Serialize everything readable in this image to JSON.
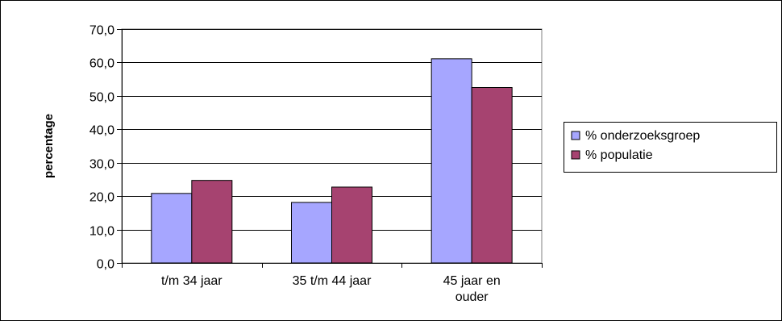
{
  "chart_data": {
    "type": "bar",
    "title": "",
    "ylabel": "percentage",
    "xlabel": "",
    "categories": [
      [
        "t/m 34 jaar"
      ],
      [
        "35 t/m 44 jaar"
      ],
      [
        "45 jaar en",
        "ouder"
      ]
    ],
    "series": [
      {
        "name": "% onderzoeksgroep",
        "values": [
          20.8,
          18.1,
          61.1
        ],
        "color": "#a6a6ff"
      },
      {
        "name": "% populatie",
        "values": [
          24.7,
          22.7,
          52.5
        ],
        "color": "#a64370"
      }
    ],
    "ylim": [
      0,
      70
    ],
    "ytick_step": 10,
    "ytick_labels": [
      "0,0",
      "10,0",
      "20,0",
      "30,0",
      "40,0",
      "50,0",
      "60,0",
      "70,0"
    ],
    "grid": true,
    "legend_position": "right"
  }
}
